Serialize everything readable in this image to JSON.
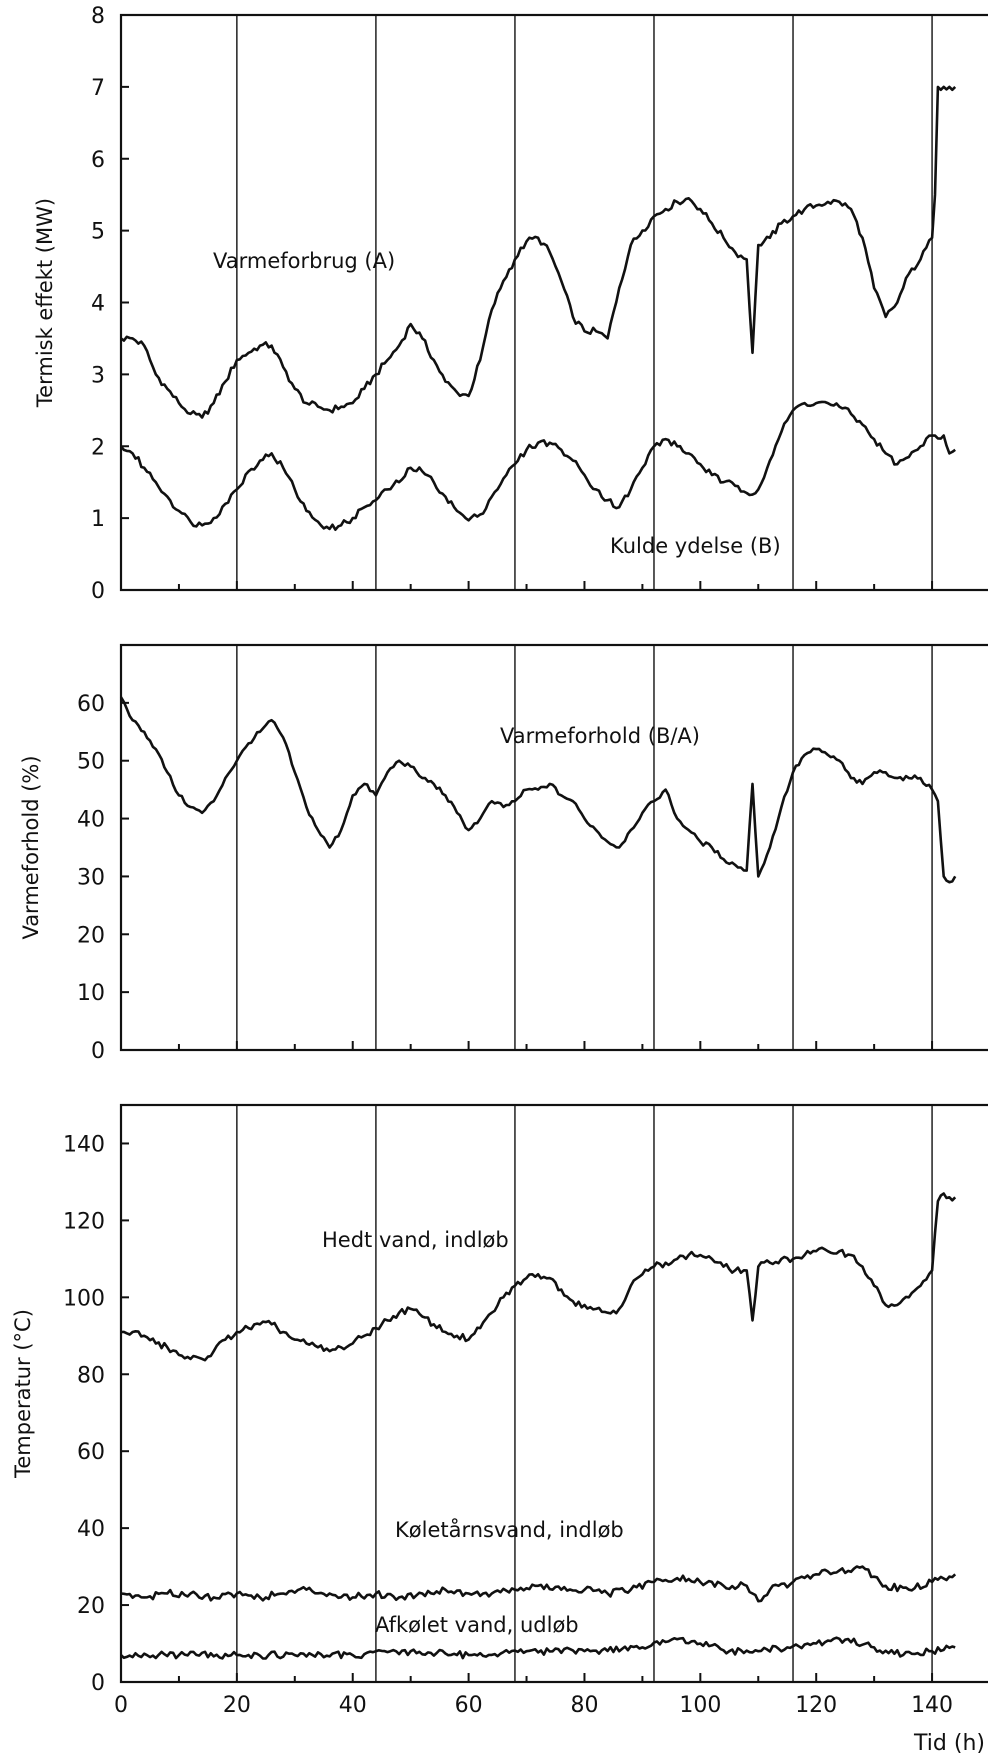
{
  "chart_data": [
    {
      "type": "line",
      "ylabel": "Termisk effekt (MW)",
      "xlim": [
        0,
        150
      ],
      "ylim": [
        0,
        8
      ],
      "yticks": [
        "0",
        "1",
        "2",
        "3",
        "4",
        "5",
        "6",
        "7",
        "8"
      ],
      "grid": false,
      "vertical_markers": [
        20,
        44,
        68,
        92,
        116,
        140
      ],
      "series": [
        {
          "name": "Varmeforbrug (A)",
          "x": [
            0,
            2,
            4,
            6,
            8,
            10,
            12,
            14,
            16,
            18,
            20,
            22,
            24,
            26,
            28,
            30,
            32,
            34,
            36,
            38,
            40,
            42,
            44,
            46,
            48,
            50,
            52,
            54,
            56,
            58,
            60,
            62,
            64,
            66,
            68,
            70,
            72,
            74,
            76,
            78,
            80,
            82,
            84,
            86,
            88,
            90,
            92,
            94,
            96,
            98,
            100,
            102,
            104,
            106,
            108,
            109,
            110,
            112,
            114,
            116,
            118,
            120,
            122,
            124,
            126,
            128,
            130,
            132,
            134,
            136,
            138,
            140,
            140.5,
            141,
            142,
            143,
            144
          ],
          "y": [
            3.5,
            3.5,
            3.4,
            3.0,
            2.8,
            2.6,
            2.45,
            2.4,
            2.6,
            2.9,
            3.2,
            3.3,
            3.4,
            3.4,
            3.1,
            2.8,
            2.6,
            2.55,
            2.5,
            2.55,
            2.6,
            2.8,
            3.0,
            3.2,
            3.4,
            3.7,
            3.5,
            3.2,
            2.9,
            2.75,
            2.7,
            3.2,
            3.9,
            4.3,
            4.6,
            4.85,
            4.9,
            4.7,
            4.3,
            3.8,
            3.6,
            3.6,
            3.5,
            4.2,
            4.8,
            5.0,
            5.2,
            5.3,
            5.4,
            5.45,
            5.3,
            5.1,
            4.9,
            4.7,
            4.6,
            3.3,
            4.8,
            4.9,
            5.1,
            5.2,
            5.3,
            5.35,
            5.4,
            5.4,
            5.3,
            4.9,
            4.2,
            3.8,
            4.0,
            4.4,
            4.6,
            4.9,
            5.5,
            7.0,
            7.0,
            7.0,
            7.0
          ]
        },
        {
          "name": "Kulde ydelse (B)",
          "x": [
            0,
            2,
            4,
            6,
            8,
            10,
            12,
            14,
            16,
            18,
            20,
            22,
            24,
            26,
            28,
            30,
            32,
            34,
            36,
            38,
            40,
            42,
            44,
            46,
            48,
            50,
            52,
            54,
            56,
            58,
            60,
            62,
            64,
            66,
            68,
            70,
            72,
            74,
            76,
            78,
            80,
            82,
            84,
            86,
            88,
            90,
            92,
            94,
            96,
            98,
            100,
            102,
            104,
            106,
            108,
            110,
            112,
            114,
            116,
            118,
            120,
            122,
            124,
            126,
            128,
            130,
            132,
            134,
            136,
            138,
            140,
            142,
            143,
            144
          ],
          "y": [
            2.0,
            1.9,
            1.7,
            1.5,
            1.3,
            1.1,
            0.95,
            0.9,
            1.0,
            1.2,
            1.4,
            1.65,
            1.8,
            1.9,
            1.7,
            1.4,
            1.1,
            0.95,
            0.85,
            0.9,
            1.0,
            1.15,
            1.25,
            1.4,
            1.5,
            1.7,
            1.65,
            1.5,
            1.3,
            1.1,
            0.97,
            1.05,
            1.3,
            1.55,
            1.75,
            1.95,
            2.05,
            2.05,
            1.95,
            1.8,
            1.6,
            1.4,
            1.25,
            1.15,
            1.4,
            1.7,
            2.0,
            2.1,
            2.0,
            1.9,
            1.75,
            1.6,
            1.5,
            1.45,
            1.35,
            1.4,
            1.8,
            2.2,
            2.5,
            2.6,
            2.6,
            2.6,
            2.55,
            2.45,
            2.3,
            2.1,
            1.9,
            1.75,
            1.85,
            2.0,
            2.15,
            2.15,
            1.9,
            1.95
          ]
        }
      ],
      "annotations": [
        "Varmeforbrug (A)",
        "Kulde ydelse (B)"
      ]
    },
    {
      "type": "line",
      "ylabel": "Varmeforhold (%)",
      "xlim": [
        0,
        150
      ],
      "ylim": [
        0,
        70
      ],
      "yticks": [
        "0",
        "10",
        "20",
        "30",
        "40",
        "50",
        "60"
      ],
      "grid": false,
      "vertical_markers": [
        20,
        44,
        68,
        92,
        116,
        140
      ],
      "series": [
        {
          "name": "Varmeforhold (B/A)",
          "x": [
            0,
            2,
            4,
            6,
            8,
            10,
            12,
            14,
            16,
            18,
            20,
            22,
            24,
            26,
            28,
            30,
            32,
            34,
            36,
            38,
            40,
            42,
            44,
            46,
            48,
            50,
            52,
            54,
            56,
            58,
            60,
            62,
            64,
            66,
            68,
            70,
            72,
            74,
            76,
            78,
            80,
            82,
            84,
            86,
            88,
            90,
            92,
            94,
            96,
            98,
            100,
            102,
            104,
            106,
            108,
            109,
            110,
            112,
            114,
            116,
            118,
            120,
            122,
            124,
            126,
            128,
            130,
            132,
            134,
            136,
            138,
            140,
            141,
            142,
            143,
            144
          ],
          "y": [
            61,
            57,
            55,
            52,
            48,
            44,
            42,
            41,
            43,
            47,
            50,
            53,
            55,
            57,
            54,
            48,
            42,
            38,
            35,
            38,
            44,
            46,
            44,
            48,
            50,
            49,
            47,
            46,
            44,
            41,
            38,
            40,
            43,
            42,
            43,
            45,
            45,
            46,
            44,
            43,
            40,
            38,
            36,
            35,
            38,
            41,
            43,
            45,
            40,
            38,
            36,
            35,
            33,
            32,
            31,
            46,
            30,
            35,
            42,
            48,
            51,
            52,
            51,
            50,
            47,
            46,
            48,
            48,
            47,
            47,
            47,
            45,
            43,
            30,
            29,
            30
          ]
        }
      ],
      "annotations": [
        "Varmeforhold (B/A)"
      ]
    },
    {
      "type": "line",
      "ylabel": "Temperatur (°C)",
      "xlabel": "Tid (h)",
      "xlim": [
        0,
        150
      ],
      "ylim": [
        0,
        150
      ],
      "xticks": [
        "0",
        "20",
        "40",
        "60",
        "80",
        "100",
        "120",
        "140"
      ],
      "yticks": [
        "0",
        "20",
        "40",
        "60",
        "80",
        "100",
        "120",
        "140"
      ],
      "grid": false,
      "vertical_markers": [
        20,
        44,
        68,
        92,
        116,
        140
      ],
      "series": [
        {
          "name": "Hedt vand, indløb",
          "x": [
            0,
            2,
            4,
            6,
            8,
            10,
            12,
            14,
            16,
            18,
            20,
            22,
            24,
            26,
            28,
            30,
            32,
            34,
            36,
            38,
            40,
            42,
            44,
            46,
            48,
            50,
            52,
            54,
            56,
            58,
            60,
            62,
            64,
            66,
            68,
            70,
            72,
            74,
            76,
            78,
            80,
            82,
            84,
            86,
            88,
            90,
            92,
            94,
            96,
            98,
            100,
            102,
            104,
            106,
            108,
            109,
            110,
            112,
            114,
            116,
            118,
            120,
            122,
            124,
            126,
            128,
            130,
            132,
            134,
            136,
            138,
            140,
            141,
            142,
            143,
            144
          ],
          "y": [
            91,
            91,
            90,
            88,
            87,
            85,
            84,
            84,
            86,
            89,
            91,
            92,
            93,
            93,
            91,
            89,
            88,
            87,
            86,
            87,
            88,
            90,
            92,
            94,
            96,
            97,
            95,
            93,
            91,
            90,
            89,
            92,
            96,
            100,
            103,
            105,
            106,
            105,
            102,
            99,
            98,
            97,
            96,
            97,
            103,
            106,
            108,
            109,
            110,
            111,
            111,
            110,
            108,
            107,
            107,
            94,
            108,
            109,
            110,
            110,
            111,
            112,
            112,
            112,
            111,
            108,
            103,
            98,
            98,
            100,
            103,
            107,
            125,
            127,
            126,
            126
          ]
        },
        {
          "name": "Køletårnsvand, indløb",
          "x": [
            0,
            4,
            8,
            12,
            16,
            20,
            24,
            28,
            32,
            36,
            40,
            44,
            48,
            52,
            56,
            60,
            64,
            68,
            72,
            76,
            80,
            84,
            88,
            92,
            96,
            100,
            104,
            108,
            110,
            112,
            116,
            120,
            124,
            128,
            132,
            136,
            140,
            144
          ],
          "y": [
            23,
            22,
            23,
            23,
            22,
            23,
            22,
            23,
            24,
            23,
            22,
            23,
            22,
            23,
            24,
            23,
            23,
            24,
            25,
            24,
            24,
            23,
            24,
            26,
            27,
            26,
            25,
            25,
            21,
            24,
            26,
            28,
            29,
            30,
            25,
            24,
            26,
            28
          ]
        },
        {
          "name": "Afkølet vand, udløb",
          "x": [
            0,
            10,
            20,
            30,
            40,
            50,
            60,
            70,
            80,
            90,
            95,
            100,
            105,
            110,
            115,
            120,
            125,
            130,
            135,
            140,
            144
          ],
          "y": [
            7,
            7,
            7,
            7,
            7,
            8,
            7,
            8,
            8,
            9,
            11,
            10,
            8,
            8,
            9,
            10,
            11,
            9,
            7,
            8,
            9
          ]
        }
      ],
      "annotations": [
        "Hedt vand, indløb",
        "Køletårnsvand, indløb",
        "Afkølet vand, udløb"
      ]
    }
  ]
}
